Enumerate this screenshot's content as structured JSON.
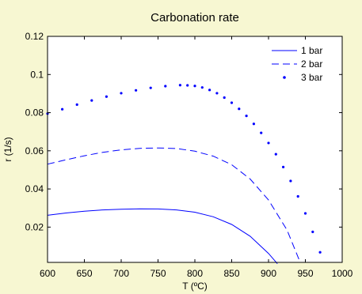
{
  "chart_data": {
    "type": "line",
    "title": "Carbonation rate",
    "xlabel": "T (ºC)",
    "ylabel": "r (1/s)",
    "xlim": [
      600,
      1000
    ],
    "ylim": [
      0.0015,
      0.12
    ],
    "xticks": [
      600,
      650,
      700,
      750,
      800,
      850,
      900,
      950,
      1000
    ],
    "yticks": [
      0.02,
      0.04,
      0.06,
      0.08,
      0.1,
      0.12
    ],
    "ytick_labels": [
      "0.02",
      "0.04",
      "0.06",
      "0.08",
      "0.1",
      "0.12"
    ],
    "grid": false,
    "legend_position": "top-right",
    "colors": {
      "series": "#0000ff",
      "background": "#f7f7d2",
      "plot_bg": "#ffffff"
    },
    "series": [
      {
        "name": "1 bar",
        "style": "solid",
        "x": [
          600,
          625,
          650,
          675,
          700,
          725,
          750,
          775,
          800,
          825,
          850,
          875,
          900,
          912
        ],
        "y": [
          0.0262,
          0.0274,
          0.0283,
          0.029,
          0.0294,
          0.0296,
          0.0295,
          0.029,
          0.0278,
          0.0254,
          0.0214,
          0.0152,
          0.0062,
          0.0008
        ]
      },
      {
        "name": "2 bar",
        "style": "dashed",
        "x": [
          600,
          625,
          650,
          675,
          700,
          725,
          750,
          775,
          800,
          825,
          850,
          875,
          900,
          925,
          943
        ],
        "y": [
          0.053,
          0.0553,
          0.0574,
          0.0592,
          0.0605,
          0.0613,
          0.0615,
          0.0612,
          0.0598,
          0.0572,
          0.0527,
          0.0452,
          0.0342,
          0.0185,
          0.0015
        ]
      },
      {
        "name": "3 bar",
        "style": "dots",
        "x": [
          600,
          620,
          640,
          660,
          680,
          700,
          720,
          740,
          760,
          780,
          790,
          800,
          810,
          820,
          830,
          840,
          850,
          860,
          870,
          880,
          890,
          900,
          910,
          920,
          930,
          940,
          950,
          960,
          970
        ],
        "y": [
          0.0795,
          0.0818,
          0.0842,
          0.0864,
          0.0884,
          0.0902,
          0.0917,
          0.093,
          0.0939,
          0.0944,
          0.0943,
          0.094,
          0.0932,
          0.0919,
          0.0902,
          0.0879,
          0.0852,
          0.082,
          0.0783,
          0.0741,
          0.0694,
          0.0641,
          0.0582,
          0.0515,
          0.0442,
          0.0361,
          0.0272,
          0.0175,
          0.0068
        ]
      }
    ]
  }
}
